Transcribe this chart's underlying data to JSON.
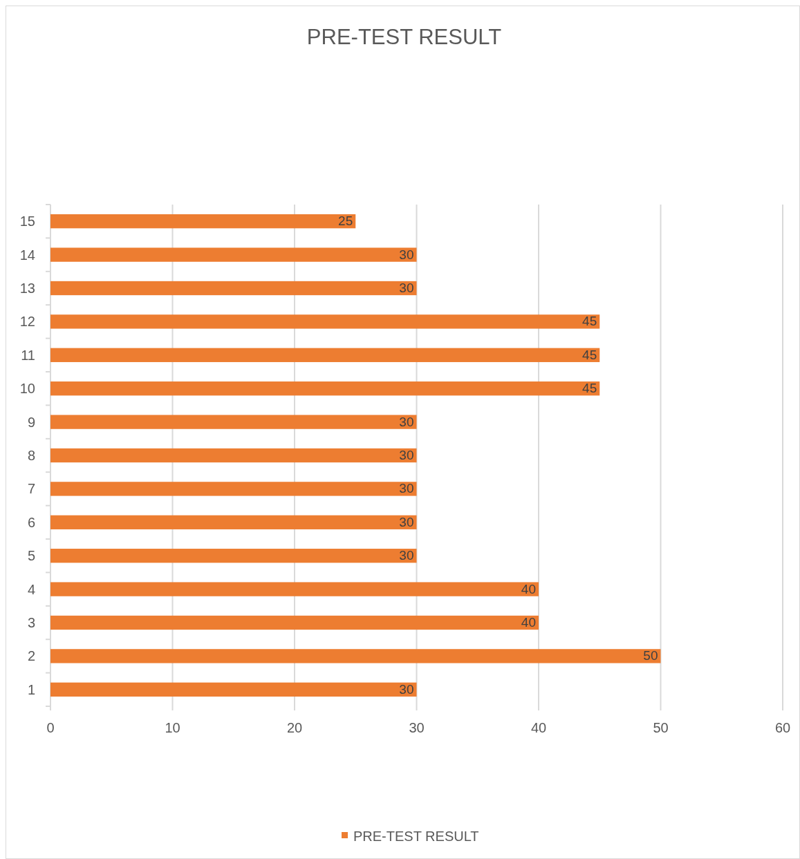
{
  "chart_data": {
    "type": "bar",
    "orientation": "horizontal",
    "title": "PRE-TEST RESULT",
    "categories": [
      "15",
      "14",
      "13",
      "12",
      "11",
      "10",
      "9",
      "8",
      "7",
      "6",
      "5",
      "4",
      "3",
      "2",
      "1"
    ],
    "series": [
      {
        "name": "PRE-TEST RESULT",
        "color": "#ed7d31",
        "values": [
          25,
          30,
          30,
          45,
          45,
          45,
          30,
          30,
          30,
          30,
          30,
          40,
          40,
          50,
          30
        ]
      }
    ],
    "xlim": [
      0,
      60
    ],
    "xticks": [
      0,
      10,
      20,
      30,
      40,
      50,
      60
    ],
    "grid": "x",
    "data_labels": true,
    "legend": "bottom"
  }
}
